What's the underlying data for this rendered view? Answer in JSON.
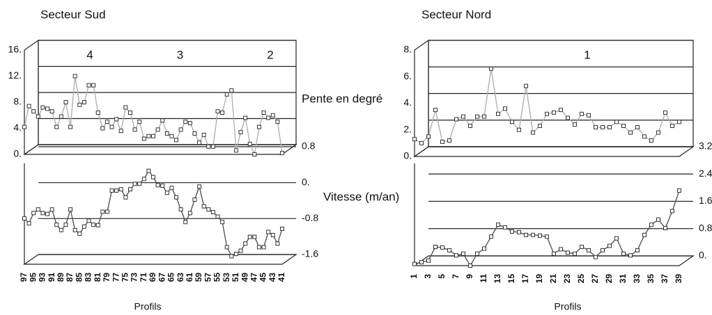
{
  "shared_labels": {
    "pente": "Pente en degré",
    "vitesse": "Vitesse (m/an)"
  },
  "chart_data": [
    {
      "type": "line",
      "title": "Secteur Sud",
      "xlabel": "Profils",
      "annotations": [
        "4",
        "3",
        "2"
      ],
      "categories": [
        "97",
        null,
        "95",
        null,
        "93",
        null,
        "91",
        null,
        "89",
        null,
        "87",
        null,
        "85",
        null,
        "83",
        null,
        "81",
        null,
        "79",
        null,
        "77",
        null,
        "75",
        null,
        "73",
        null,
        "71",
        null,
        "69",
        null,
        "67",
        null,
        "65",
        null,
        "63",
        null,
        "61",
        null,
        "59",
        null,
        "57",
        null,
        "55",
        null,
        "53",
        null,
        "51",
        null,
        "49",
        null,
        "47",
        null,
        "45",
        null,
        "43",
        null,
        "41"
      ],
      "series": [
        {
          "color": "#b0b0b0",
          "axis": "y",
          "values": [
            4.2,
            7.4,
            6.6,
            5.8,
            7.2,
            7.0,
            6.6,
            4.2,
            5.8,
            8.0,
            4.2,
            12.0,
            7.6,
            8.0,
            10.6,
            10.6,
            6.4,
            4.0,
            5.0,
            4.2,
            5.4,
            3.6,
            7.2,
            6.4,
            3.8,
            5.0,
            2.4,
            2.8,
            2.8,
            3.8,
            5.2,
            3.2,
            2.8,
            2.2,
            3.8,
            5.0,
            4.8,
            3.2,
            1.8,
            3.0,
            1.2,
            1.2,
            6.6,
            6.4,
            9.2,
            9.8,
            0.6,
            3.4,
            5.6,
            1.6,
            0.0,
            4.2,
            6.4,
            5.6,
            6.0,
            5.0,
            0.2
          ]
        },
        {
          "color": "#555555",
          "axis": "y2",
          "values": [
            -0.58,
            -0.69,
            -0.46,
            -0.38,
            -0.46,
            -0.48,
            -0.38,
            -0.72,
            -0.84,
            -0.72,
            -0.38,
            -0.84,
            -0.92,
            -0.76,
            -0.63,
            -0.72,
            -0.73,
            -0.43,
            -0.43,
            0.04,
            0.04,
            0.07,
            -0.11,
            0.07,
            0.19,
            0.19,
            0.3,
            0.48,
            0.34,
            0.16,
            0.15,
            -0.01,
            0.1,
            -0.11,
            -0.38,
            -0.66,
            -0.46,
            -0.16,
            0.13,
            -0.31,
            -0.38,
            -0.44,
            -0.54,
            -0.66,
            -1.22,
            -1.42,
            -1.37,
            -1.3,
            -1.14,
            -0.99,
            -0.99,
            -1.22,
            -1.22,
            -0.88,
            -0.95,
            -1.14,
            -0.81
          ]
        }
      ],
      "ylim": [
        0,
        16
      ],
      "yticks": [
        {
          "value": 0,
          "label": "0."
        },
        {
          "value": 4,
          "label": "4."
        },
        {
          "value": 8,
          "label": "8."
        },
        {
          "value": 12,
          "label": "12."
        },
        {
          "value": 16,
          "label": "16."
        }
      ],
      "y2lim": [
        -1.6,
        0.8
      ],
      "y2ticks": [
        -1.6,
        -0.8,
        {
          "value": 0,
          "label": "0."
        },
        0.8
      ]
    },
    {
      "type": "line",
      "title": "Secteur Nord",
      "xlabel": "Profils",
      "annotations": [
        "1"
      ],
      "categories": [
        "1",
        null,
        "3",
        null,
        "5",
        null,
        "7",
        null,
        "9",
        null,
        "11",
        null,
        "13",
        null,
        "15",
        null,
        "17",
        null,
        "19",
        null,
        "21",
        null,
        "23",
        null,
        "25",
        null,
        "27",
        null,
        "29",
        null,
        "31",
        null,
        "33",
        null,
        "35",
        null,
        "37",
        null,
        "39"
      ],
      "series": [
        {
          "color": "#b0b0b0",
          "axis": "y",
          "values": [
            1.3,
            1.0,
            1.5,
            3.5,
            1.1,
            1.2,
            2.8,
            3.0,
            2.3,
            3.0,
            3.0,
            6.6,
            3.2,
            3.6,
            2.6,
            2.0,
            5.3,
            1.8,
            2.3,
            3.2,
            3.3,
            3.5,
            2.9,
            2.4,
            3.2,
            3.1,
            2.2,
            2.2,
            2.2,
            2.6,
            2.3,
            1.8,
            2.2,
            1.5,
            1.2,
            1.8,
            3.3,
            2.3,
            2.6
          ]
        },
        {
          "color": "#555555",
          "axis": "y2",
          "values": [
            0.05,
            0.1,
            0.15,
            0.55,
            0.53,
            0.45,
            0.3,
            0.35,
            0.0,
            0.35,
            0.5,
            0.85,
            1.2,
            1.12,
            1.0,
            0.98,
            0.9,
            0.9,
            0.88,
            0.85,
            0.35,
            0.48,
            0.38,
            0.35,
            0.55,
            0.45,
            0.25,
            0.45,
            0.58,
            0.8,
            0.35,
            0.3,
            0.45,
            0.9,
            1.2,
            1.35,
            1.1,
            1.6,
            2.2
          ]
        }
      ],
      "ylim": [
        0,
        8
      ],
      "yticks": [
        {
          "value": 0,
          "label": "0."
        },
        {
          "value": 2,
          "label": "2."
        },
        {
          "value": 4,
          "label": "4."
        },
        {
          "value": 6,
          "label": "6."
        },
        {
          "value": 8,
          "label": "8."
        }
      ],
      "y2lim": [
        0,
        3.2
      ],
      "y2ticks": [
        {
          "value": 0,
          "label": "0."
        },
        0.8,
        1.6,
        2.4,
        3.2
      ]
    }
  ]
}
